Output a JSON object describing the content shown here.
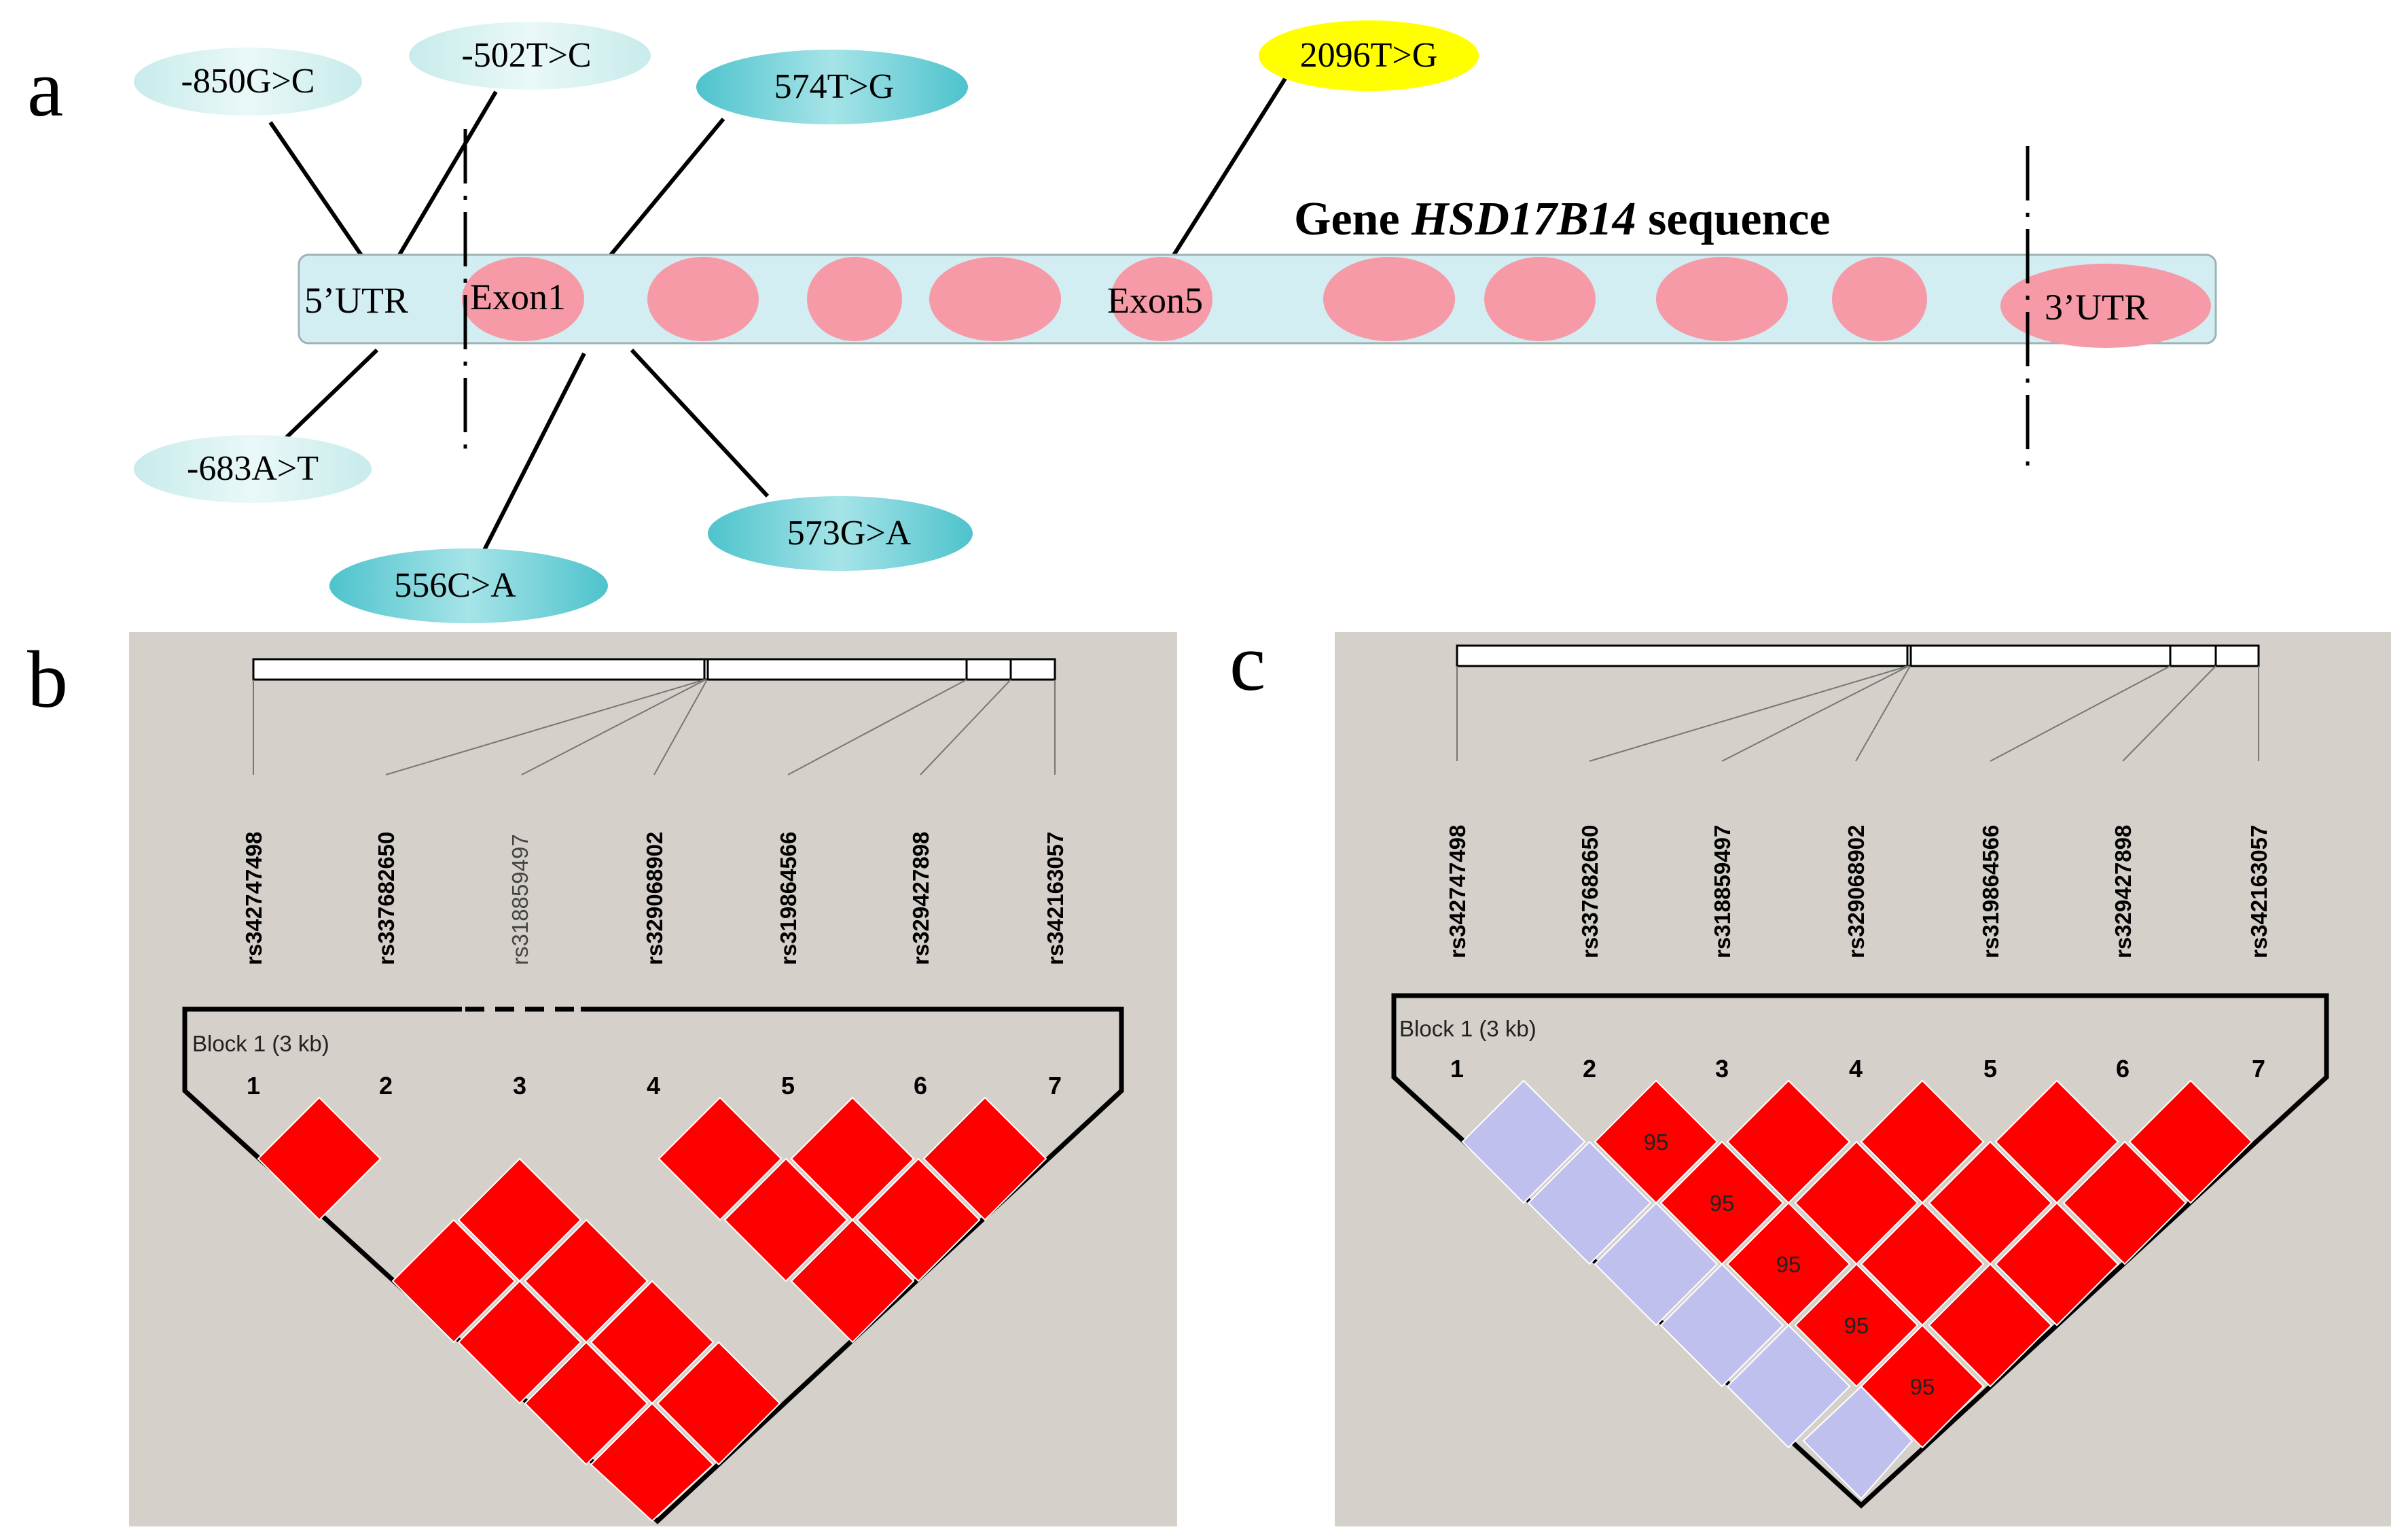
{
  "panel_labels": [
    "a",
    "b",
    "c"
  ],
  "gene": {
    "title_prefix": "Gene ",
    "title_gene": "HSD17B14",
    "title_suffix": " sequence",
    "utr5": "5’UTR",
    "utr3": "3’UTR",
    "exon1": "Exon1",
    "exon5": "Exon5",
    "colors": {
      "gene_bar": "#d2eef2",
      "exon": "#f59aa6",
      "snp_light": "#ddf2f2",
      "snp_dark": "#4ec3cc",
      "snp_highlight": "#ffff00"
    }
  },
  "variants": [
    {
      "label": "-850G>C",
      "style": "light"
    },
    {
      "label": "-502T>C",
      "style": "light"
    },
    {
      "label": "574T>G",
      "style": "dark"
    },
    {
      "label": "2096T>G",
      "style": "highlight"
    },
    {
      "label": "-683A>T",
      "style": "light"
    },
    {
      "label": "556C>A",
      "style": "dark"
    },
    {
      "label": "573G>A",
      "style": "dark"
    }
  ],
  "ld_b": {
    "snps": [
      "rs342747498",
      "rs337682650",
      "rs318859497",
      "rs329068902",
      "rs319864566",
      "rs329427898",
      "rs342163057"
    ],
    "indices": [
      "1",
      "2",
      "3",
      "4",
      "5",
      "6",
      "7"
    ],
    "block_label": "Block 1 (3 kb)"
  },
  "ld_c": {
    "snps": [
      "rs342747498",
      "rs337682650",
      "rs318859497",
      "rs329068902",
      "rs319864566",
      "rs329427898",
      "rs342163057"
    ],
    "indices": [
      "1",
      "2",
      "3",
      "4",
      "5",
      "6",
      "7"
    ],
    "block_label": "Block 1 (3 kb)",
    "values": [
      "95",
      "95",
      "95",
      "95",
      "95"
    ]
  },
  "colors": {
    "panel_bg": "#d6d0ca",
    "ld_high": "#ff0000",
    "ld_low": "#c0c0ee"
  }
}
